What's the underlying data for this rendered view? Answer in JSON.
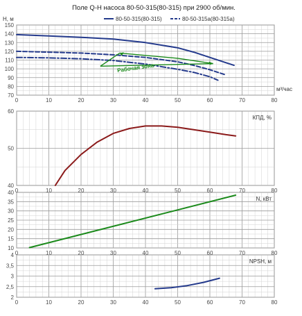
{
  "chart_data": {
    "title": "Поле Q-H насоса 80-50-315(80-315) при 2900 об/мин.",
    "x_axis": {
      "label": "м³/час",
      "range": [
        0,
        80
      ],
      "ticks": [
        "0",
        "10",
        "20",
        "30",
        "40",
        "50",
        "60",
        "70",
        "80"
      ]
    },
    "legend": [
      {
        "name": "80-50-315(80-315)",
        "style": "solid",
        "color": "#243a8c"
      },
      {
        "name": "80-50-315а(80-315а)",
        "style": "dashed",
        "color": "#243a8c"
      }
    ],
    "panels": [
      {
        "id": "head",
        "type": "line",
        "ylabel": "Н, м",
        "ylim": [
          70,
          150
        ],
        "yticks": [
          "150",
          "140",
          "130",
          "120",
          "110",
          "100",
          "90",
          "80",
          "70"
        ],
        "series": [
          {
            "name": "80-50-315(80-315)",
            "style": "solid",
            "color": "#243a8c",
            "x": [
              0,
              10,
              20,
              30,
              40,
              50,
              55,
              60,
              65,
              67.5
            ],
            "y": [
              139,
              137.5,
              136,
              134,
              130,
              124,
              119,
              113,
              107,
              104
            ]
          },
          {
            "name": "80-50-315а(80-315а)",
            "style": "dashed",
            "color": "#243a8c",
            "x": [
              0,
              10,
              20,
              30,
              40,
              50,
              55,
              60,
              65
            ],
            "y": [
              120,
              119,
              118,
              116,
              113,
              108,
              104,
              99,
              93
            ]
          },
          {
            "name": "",
            "style": "dashdot",
            "color": "#243a8c",
            "x": [
              0,
              10,
              20,
              30,
              40,
              50,
              55,
              60,
              62.5
            ],
            "y": [
              113,
              112.5,
              111.5,
              109.5,
              105.5,
              99.5,
              96,
              91,
              87
            ]
          }
        ],
        "annotation": {
          "text": "Рабочая зона",
          "color": "#1b8a1b",
          "vertices": [
            [
              32,
              118
            ],
            [
              50,
              112
            ],
            [
              61,
              106
            ],
            [
              26,
              103
            ]
          ]
        }
      },
      {
        "id": "efficiency",
        "type": "line",
        "ylabel": "КПД, %",
        "ylim": [
          30,
          60
        ],
        "yticks": [
          "60",
          "50",
          "40"
        ],
        "series": [
          {
            "name": "КПД, %",
            "color": "#8b1a1a",
            "x": [
              12,
              15,
              20,
              25,
              30,
              35,
              40,
              45,
              50,
              55,
              60,
              65,
              68
            ],
            "y": [
              30,
              36,
              42.5,
              47.5,
              51,
              53,
              54,
              54,
              53.5,
              52.5,
              51.5,
              50.5,
              50
            ]
          }
        ]
      },
      {
        "id": "power",
        "type": "line",
        "ylabel": "",
        "label": "N, кВт",
        "ylim": [
          10,
          40
        ],
        "yticks": [
          "40",
          "35",
          "30",
          "25",
          "20",
          "15",
          "10"
        ],
        "series": [
          {
            "name": "N, кВт",
            "color": "#1b8a1b",
            "x": [
              4,
              68
            ],
            "y": [
              10.2,
              38.5
            ]
          }
        ]
      },
      {
        "id": "npsh",
        "type": "line",
        "ylabel": "",
        "label": "NPSH, м",
        "ylim": [
          2,
          4
        ],
        "yticks": [
          "4",
          "3,5",
          "3",
          "2,5",
          "2"
        ],
        "series": [
          {
            "name": "NPSH, м",
            "color": "#243a8c",
            "x": [
              43,
              48,
              53,
              58,
              63
            ],
            "y": [
              2.4,
              2.45,
              2.55,
              2.7,
              2.9
            ]
          }
        ]
      }
    ]
  }
}
